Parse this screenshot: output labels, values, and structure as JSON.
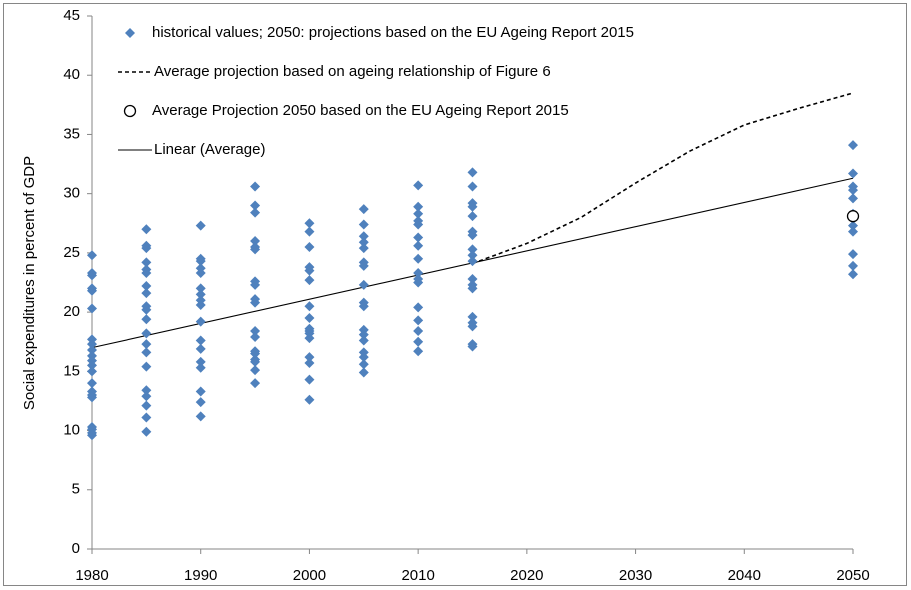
{
  "chart_data": {
    "type": "scatter",
    "y_label": "Social expenditures in percent of GDP",
    "xlim": [
      1980,
      2050
    ],
    "xticks": [
      1980,
      1990,
      2000,
      2010,
      2020,
      2030,
      2040,
      2050
    ],
    "ylim": [
      0,
      45
    ],
    "yticks": [
      0,
      5,
      10,
      15,
      20,
      25,
      30,
      35,
      40,
      45
    ],
    "legend": "upper left",
    "series": [
      {
        "name": "historical values; 2050: projections based on the EU Ageing Report 2015",
        "color": "#4f81bd",
        "marker": "diamond",
        "line": "none",
        "x": [
          1980,
          1980,
          1980,
          1980,
          1980,
          1980,
          1980,
          1980,
          1980,
          1980,
          1980,
          1980,
          1980,
          1980,
          1980,
          1980,
          1980,
          1980,
          1980,
          1980,
          1980,
          1985,
          1985,
          1985,
          1985,
          1985,
          1985,
          1985,
          1985,
          1985,
          1985,
          1985,
          1985,
          1985,
          1985,
          1985,
          1985,
          1985,
          1985,
          1985,
          1985,
          1990,
          1990,
          1990,
          1990,
          1990,
          1990,
          1990,
          1990,
          1990,
          1990,
          1990,
          1990,
          1990,
          1990,
          1990,
          1990,
          1990,
          1995,
          1995,
          1995,
          1995,
          1995,
          1995,
          1995,
          1995,
          1995,
          1995,
          1995,
          1995,
          1995,
          1995,
          1995,
          1995,
          1995,
          1995,
          2000,
          2000,
          2000,
          2000,
          2000,
          2000,
          2000,
          2000,
          2000,
          2000,
          2000,
          2000,
          2000,
          2000,
          2000,
          2000,
          2005,
          2005,
          2005,
          2005,
          2005,
          2005,
          2005,
          2005,
          2005,
          2005,
          2005,
          2005,
          2005,
          2005,
          2005,
          2005,
          2005,
          2010,
          2010,
          2010,
          2010,
          2010,
          2010,
          2010,
          2010,
          2010,
          2010,
          2010,
          2010,
          2010,
          2010,
          2010,
          2010,
          2015,
          2015,
          2015,
          2015,
          2015,
          2015,
          2015,
          2015,
          2015,
          2015,
          2015,
          2015,
          2015,
          2015,
          2015,
          2015,
          2015,
          2015,
          2050,
          2050,
          2050,
          2050,
          2050,
          2050,
          2050,
          2050,
          2050,
          2050,
          2050
        ],
        "values": [
          24.8,
          23.3,
          23.1,
          22.0,
          21.8,
          20.3,
          17.7,
          17.3,
          16.8,
          16.3,
          15.9,
          15.5,
          15.0,
          14.0,
          13.3,
          13.0,
          12.8,
          10.3,
          10.1,
          9.8,
          9.6,
          27.0,
          25.6,
          25.4,
          24.2,
          23.6,
          23.3,
          22.2,
          21.6,
          20.5,
          20.2,
          19.4,
          18.2,
          17.3,
          16.6,
          15.4,
          13.4,
          12.9,
          12.1,
          11.1,
          9.9,
          27.3,
          24.5,
          24.3,
          23.7,
          23.3,
          22.0,
          21.5,
          21.0,
          20.6,
          19.2,
          17.6,
          16.9,
          15.8,
          15.3,
          13.3,
          12.4,
          11.2,
          30.6,
          29.0,
          28.4,
          26.0,
          25.5,
          25.3,
          22.6,
          22.3,
          21.1,
          20.8,
          18.4,
          17.9,
          16.7,
          16.5,
          16.0,
          15.8,
          15.1,
          14.0,
          27.5,
          26.8,
          25.5,
          23.8,
          23.5,
          22.7,
          20.5,
          19.5,
          18.6,
          18.4,
          18.2,
          17.8,
          16.2,
          15.7,
          14.3,
          12.6,
          28.7,
          27.4,
          26.4,
          25.9,
          25.4,
          24.2,
          23.9,
          22.3,
          20.8,
          20.5,
          18.5,
          18.1,
          17.6,
          16.6,
          16.2,
          15.6,
          14.9,
          30.7,
          28.9,
          28.3,
          27.7,
          27.4,
          26.3,
          25.6,
          24.5,
          23.3,
          22.8,
          22.5,
          20.4,
          19.3,
          18.4,
          17.5,
          16.7,
          31.8,
          30.6,
          29.2,
          28.9,
          28.1,
          26.8,
          26.5,
          25.3,
          24.8,
          24.3,
          22.8,
          22.3,
          22.0,
          19.6,
          19.1,
          18.8,
          17.3,
          17.1,
          34.1,
          31.7,
          30.6,
          30.3,
          29.6,
          28.3,
          27.3,
          26.8,
          24.9,
          23.9,
          23.2
        ]
      },
      {
        "name": "Average projection based on ageing relationship of Figure 6",
        "color": "#000000",
        "marker": "none",
        "line": "dashed",
        "x": [
          2015,
          2020,
          2025,
          2030,
          2035,
          2040,
          2045,
          2050
        ],
        "values": [
          24.1,
          25.8,
          28.0,
          30.9,
          33.6,
          35.8,
          37.2,
          38.5
        ]
      },
      {
        "name": "Average Projection 2050 based on the EU Ageing Report 2015",
        "color": "#000000",
        "marker": "circle",
        "line": "none",
        "x": [
          2050
        ],
        "values": [
          28.1
        ]
      },
      {
        "name": "Linear (Average)",
        "color": "#000000",
        "marker": "none",
        "line": "solid",
        "x": [
          1980,
          2050
        ],
        "values": [
          17.0,
          31.3
        ]
      }
    ]
  }
}
